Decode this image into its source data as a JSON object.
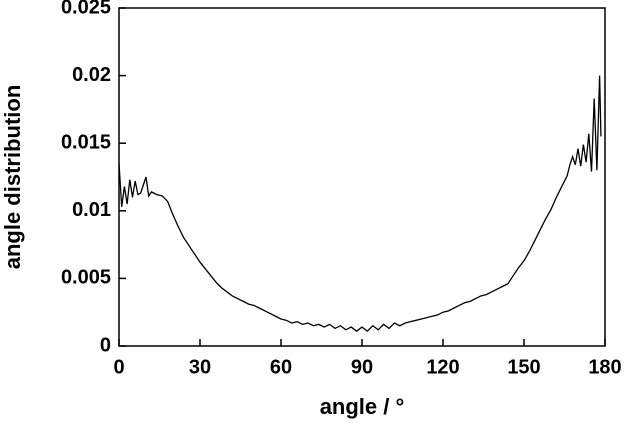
{
  "chart_data": {
    "type": "line",
    "x_label": "angle / °",
    "y_label": "angle distribution",
    "xlim": [
      0,
      180
    ],
    "ylim": [
      0,
      0.025
    ],
    "xticks": [
      0,
      30,
      60,
      90,
      120,
      150,
      180
    ],
    "yticks": [
      0,
      0.005,
      0.01,
      0.015,
      0.02,
      0.025
    ],
    "series": [
      {
        "color": "#000000",
        "x": [
          0,
          1,
          2,
          3,
          4,
          5,
          6,
          7,
          8,
          10,
          11,
          12,
          14,
          16,
          18,
          20,
          22,
          24,
          26,
          28,
          30,
          32,
          34,
          36,
          38,
          40,
          42,
          44,
          46,
          48,
          50,
          52,
          54,
          56,
          58,
          60,
          62,
          64,
          66,
          68,
          70,
          72,
          74,
          76,
          78,
          80,
          82,
          84,
          86,
          88,
          90,
          92,
          94,
          96,
          98,
          100,
          102,
          104,
          106,
          108,
          110,
          112,
          114,
          116,
          118,
          120,
          122,
          124,
          126,
          128,
          130,
          132,
          134,
          136,
          138,
          140,
          142,
          144,
          146,
          148,
          150,
          152,
          154,
          156,
          158,
          160,
          162,
          164,
          166,
          167,
          168,
          169,
          170,
          171,
          172,
          173,
          174,
          175,
          176,
          177,
          178,
          178.5
        ],
        "values": [
          0.0135,
          0.0103,
          0.0118,
          0.0105,
          0.0123,
          0.011,
          0.0122,
          0.0112,
          0.0113,
          0.0125,
          0.0111,
          0.0114,
          0.0112,
          0.0111,
          0.0107,
          0.0097,
          0.0088,
          0.008,
          0.0074,
          0.0068,
          0.0062,
          0.0057,
          0.0052,
          0.0047,
          0.0043,
          0.004,
          0.0037,
          0.0035,
          0.0033,
          0.0031,
          0.003,
          0.0028,
          0.0026,
          0.0024,
          0.0022,
          0.002,
          0.0019,
          0.0017,
          0.0018,
          0.0016,
          0.0017,
          0.0015,
          0.0016,
          0.0014,
          0.0016,
          0.0013,
          0.0015,
          0.0012,
          0.0014,
          0.0011,
          0.0014,
          0.0011,
          0.0015,
          0.0012,
          0.0016,
          0.0013,
          0.0017,
          0.0015,
          0.0017,
          0.0018,
          0.0019,
          0.002,
          0.0021,
          0.0022,
          0.0023,
          0.0025,
          0.0026,
          0.0028,
          0.003,
          0.0032,
          0.0033,
          0.0035,
          0.0037,
          0.0038,
          0.004,
          0.0042,
          0.0044,
          0.0046,
          0.0052,
          0.0058,
          0.0063,
          0.007,
          0.0078,
          0.0086,
          0.0094,
          0.0101,
          0.011,
          0.0118,
          0.0126,
          0.0134,
          0.014,
          0.0134,
          0.0146,
          0.0133,
          0.0149,
          0.0136,
          0.0157,
          0.0129,
          0.0183,
          0.013,
          0.02,
          0.0155
        ]
      }
    ]
  }
}
